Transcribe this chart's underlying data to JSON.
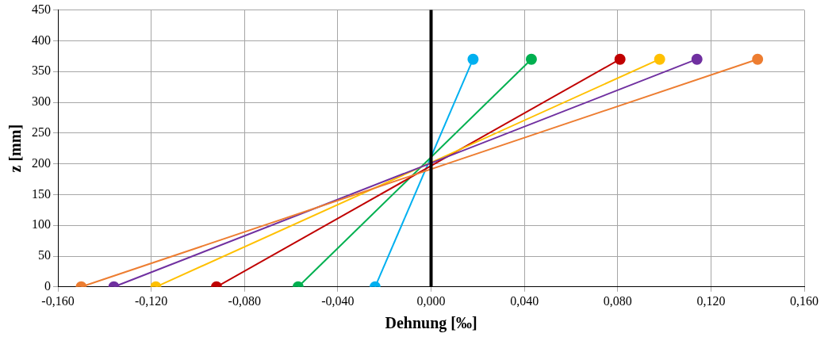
{
  "chart_data": {
    "type": "line",
    "xlabel": "Dehnung [‰]",
    "ylabel": "z [mm]",
    "series": [
      {
        "color": "#ed7d31",
        "x": [
          -0.15,
          0.14
        ],
        "values": [
          0,
          370
        ]
      },
      {
        "color": "#7030a0",
        "x": [
          -0.136,
          0.114
        ],
        "values": [
          0,
          370
        ]
      },
      {
        "color": "#ffc000",
        "x": [
          -0.118,
          0.098
        ],
        "values": [
          0,
          370
        ]
      },
      {
        "color": "#c00000",
        "x": [
          -0.092,
          0.081
        ],
        "values": [
          0,
          370
        ]
      },
      {
        "color": "#00b050",
        "x": [
          -0.057,
          0.043
        ],
        "values": [
          0,
          370
        ]
      },
      {
        "color": "#00b0f0",
        "x": [
          -0.024,
          0.018
        ],
        "values": [
          0,
          370
        ]
      }
    ],
    "xlim": [
      -0.16,
      0.16
    ],
    "xticks": [
      {
        "value": -0.16,
        "label": "-0,160"
      },
      {
        "value": -0.12,
        "label": "-0,120"
      },
      {
        "value": -0.08,
        "label": "-0,080"
      },
      {
        "value": -0.04,
        "label": "-0,040"
      },
      {
        "value": 0,
        "label": "0,000"
      },
      {
        "value": 0.04,
        "label": "0,040"
      },
      {
        "value": 0.08,
        "label": "0,080"
      },
      {
        "value": 0.12,
        "label": "0,120"
      },
      {
        "value": 0.16,
        "label": "0,160"
      }
    ],
    "ylim": [
      0,
      450
    ],
    "yticks": [
      0,
      50,
      100,
      150,
      200,
      250,
      300,
      350,
      400,
      450
    ],
    "ref_lines": [
      {
        "axis": "x",
        "value": 0,
        "color": "#000000"
      }
    ],
    "grid": true,
    "legend": false,
    "marker": "circle",
    "line_style": "solid"
  }
}
